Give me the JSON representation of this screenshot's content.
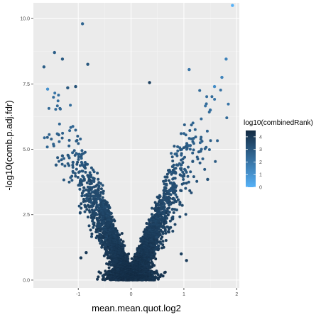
{
  "chart_data": {
    "type": "scatter",
    "title": "",
    "xlabel": "mean.mean.quot.log2",
    "ylabel": "-log10(comb.p.adj.fdr)",
    "xlim": [
      -1.85,
      2.05
    ],
    "ylim": [
      -0.3,
      10.6
    ],
    "x_ticks": [
      -1,
      0,
      1,
      2
    ],
    "x_tick_labels": [
      "-1",
      "0",
      "1",
      "2"
    ],
    "y_ticks": [
      0,
      2.5,
      5,
      7.5,
      10
    ],
    "y_tick_labels": [
      "0.0",
      "2.5",
      "5.0",
      "7.5",
      "10.0"
    ],
    "grid": true,
    "panel_background": "#ebebeb",
    "color_scale": {
      "title": "log10(combinedRank)",
      "min": 0,
      "max": 4.5,
      "low_color": "#56b1f7",
      "high_color": "#132b43",
      "ticks": [
        0,
        1,
        2,
        3,
        4
      ],
      "tick_labels": [
        "0",
        "1",
        "2",
        "3",
        "4"
      ]
    },
    "legend_position": "right",
    "highlighted_points": [
      {
        "x": 1.92,
        "y": 10.5,
        "color_value": 0.0
      },
      {
        "x": -0.92,
        "y": 9.8,
        "color_value": 2.6
      },
      {
        "x": -1.45,
        "y": 8.7,
        "color_value": 2.8
      },
      {
        "x": -1.65,
        "y": 8.15,
        "color_value": 2.8
      },
      {
        "x": -1.3,
        "y": 8.45,
        "color_value": 2.9
      },
      {
        "x": -0.82,
        "y": 8.25,
        "color_value": 3.0
      },
      {
        "x": 1.8,
        "y": 8.45,
        "color_value": 1.5
      },
      {
        "x": 1.1,
        "y": 8.05,
        "color_value": 2.0
      },
      {
        "x": -1.58,
        "y": 7.3,
        "color_value": 1.0
      },
      {
        "x": 1.58,
        "y": 7.4,
        "color_value": 1.2
      },
      {
        "x": 1.72,
        "y": 7.75,
        "color_value": 1.5
      },
      {
        "x": 0.35,
        "y": 7.55,
        "color_value": 3.8
      },
      {
        "x": -1.2,
        "y": 7.35,
        "color_value": 3.0
      },
      {
        "x": -1.05,
        "y": 7.4,
        "color_value": 3.2
      },
      {
        "x": 1.5,
        "y": 6.5,
        "color_value": 2.2
      },
      {
        "x": 1.45,
        "y": 3.85,
        "color_value": 3.2
      },
      {
        "x": -1.42,
        "y": 4.4,
        "color_value": 3.0
      },
      {
        "x": -1.3,
        "y": 4.75,
        "color_value": 3.1
      },
      {
        "x": -1.1,
        "y": 4.5,
        "color_value": 3.0
      },
      {
        "x": -0.95,
        "y": 0.85,
        "color_value": 4.0
      },
      {
        "x": -0.85,
        "y": 1.05,
        "color_value": 4.0
      },
      {
        "x": 0.95,
        "y": 1.0,
        "color_value": 3.8
      },
      {
        "x": 1.05,
        "y": 0.75,
        "color_value": 3.9
      }
    ]
  }
}
